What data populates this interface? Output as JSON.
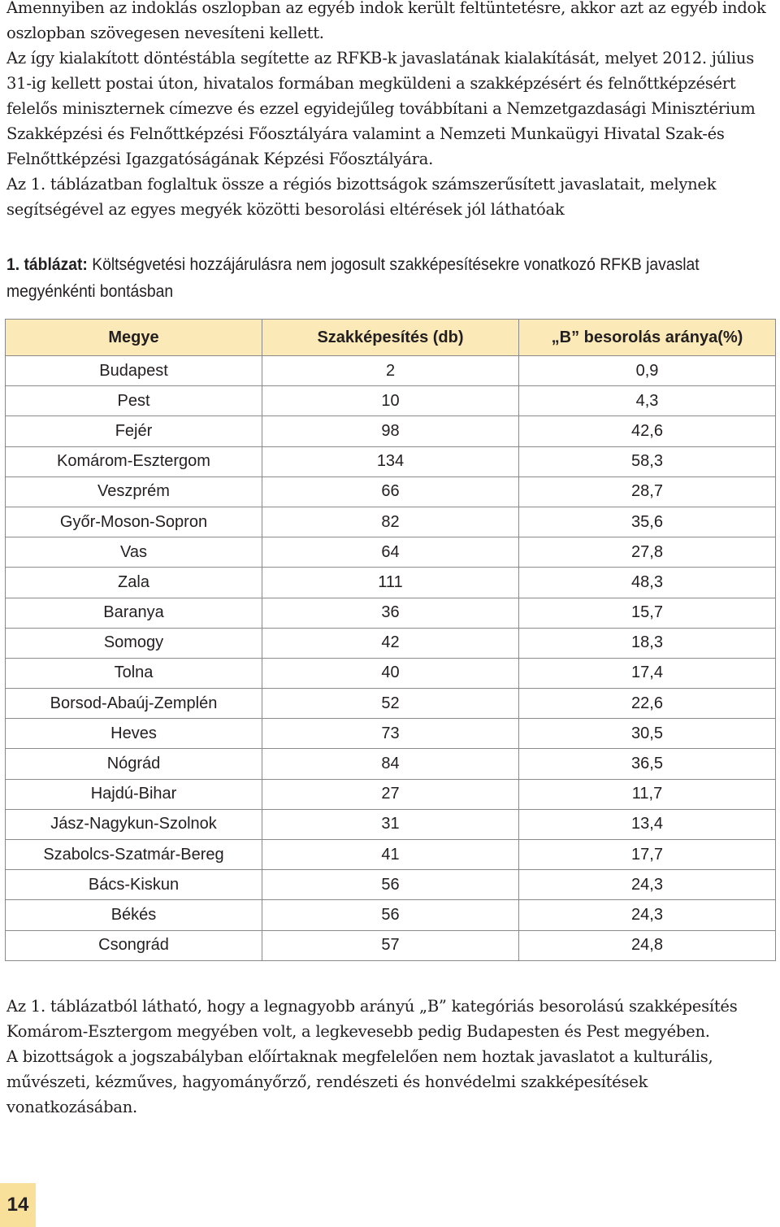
{
  "intro_text": "Amennyiben az indoklás oszlopban az egyéb indok került feltüntetésre, akkor azt az egyéb indok oszlopban szövegesen nevesíteni kellett.\n   Az így kialakított döntéstábla segítette az RFKB-k javaslatának kialakítását, melyet 2012. július 31-ig kellett postai úton, hivatalos formában megküldeni a szakképzésért és felnőttképzésért felelős miniszternek címezve és ezzel egyidejűleg továbbítani a Nemzetgazdasági Minisztérium Szakképzési és Felnőttképzési Főosztályára valamint a Nemzeti Munkaügyi Hivatal Szak-és Felnőttképzési Igazgatóságának Képzési Főosztályára.\n   Az 1. táblázatban foglaltuk össze a régiós bizottságok számszerűsített javaslatait, melynek segítségével az egyes megyék közötti besorolási eltérések jól láthatóak",
  "caption": {
    "label": "1. táblázat:",
    "text": " Költségvetési hozzájárulásra nem jogosult szakképesítésekre vonatkozó RFKB javaslat megyénkénti bontásban"
  },
  "table": {
    "headers": [
      "Megye",
      "Szakképesítés (db)",
      "„B” besorolás aránya(%)"
    ],
    "rows": [
      [
        "Budapest",
        "2",
        "0,9"
      ],
      [
        "Pest",
        "10",
        "4,3"
      ],
      [
        "Fejér",
        "98",
        "42,6"
      ],
      [
        "Komárom-Esztergom",
        "134",
        "58,3"
      ],
      [
        "Veszprém",
        "66",
        "28,7"
      ],
      [
        "Győr-Moson-Sopron",
        "82",
        "35,6"
      ],
      [
        "Vas",
        "64",
        "27,8"
      ],
      [
        "Zala",
        "111",
        "48,3"
      ],
      [
        "Baranya",
        "36",
        "15,7"
      ],
      [
        "Somogy",
        "42",
        "18,3"
      ],
      [
        "Tolna",
        "40",
        "17,4"
      ],
      [
        "Borsod-Abaúj-Zemplén",
        "52",
        "22,6"
      ],
      [
        "Heves",
        "73",
        "30,5"
      ],
      [
        "Nógrád",
        "84",
        "36,5"
      ],
      [
        "Hajdú-Bihar",
        "27",
        "11,7"
      ],
      [
        "Jász-Nagykun-Szolnok",
        "31",
        "13,4"
      ],
      [
        "Szabolcs-Szatmár-Bereg",
        "41",
        "17,7"
      ],
      [
        "Bács-Kiskun",
        "56",
        "24,3"
      ],
      [
        "Békés",
        "56",
        "24,3"
      ],
      [
        "Csongrád",
        "57",
        "24,8"
      ]
    ]
  },
  "outro_text": "   Az 1. táblázatból látható, hogy a legnagyobb arányú „B” kategóriás besorolású szakképesítés Komárom-Esztergom megyében volt, a legkevesebb pedig Budapesten és Pest megyében.\n   A bizottságok a jogszabályban előírtaknak megfelelően nem hoztak javaslatot a kulturális, művészeti, kézműves, hagyományőrző, rendészeti és honvédelmi szakképesítések vonatkozásában.",
  "page_number": "14",
  "colors": {
    "header_bg": "#fbe9b7",
    "page_tab_bg": "#f8df9a"
  }
}
